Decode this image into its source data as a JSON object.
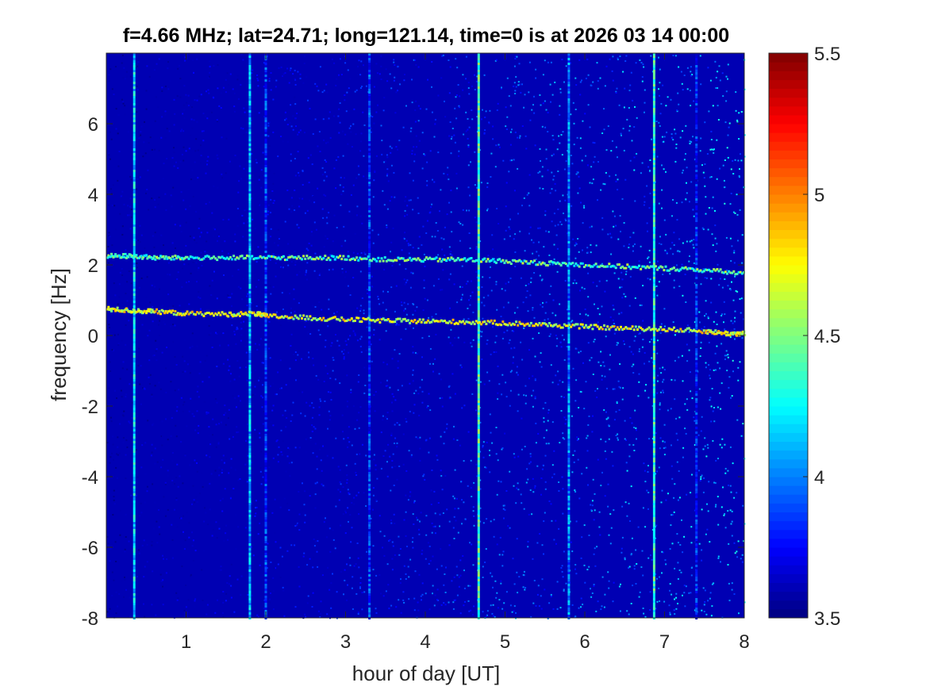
{
  "chart_data": {
    "type": "heatmap",
    "title": "f=4.66 MHz;  lat=24.71; long=121.14, time=0 is at 2026 03 14 00:00",
    "xlabel": "hour of day [UT]",
    "ylabel": "frequency [Hz]",
    "xlim": [
      0,
      8
    ],
    "ylim": [
      -8,
      8
    ],
    "x_ticks": [
      1,
      2,
      3,
      4,
      5,
      6,
      7,
      8
    ],
    "y_ticks": [
      -8,
      -6,
      -4,
      -2,
      0,
      2,
      4,
      6
    ],
    "colorbar": {
      "colormap": "jet",
      "clim": [
        3.5,
        5.5
      ],
      "ticks": [
        3.5,
        4,
        4.5,
        5,
        5.5
      ]
    },
    "background_level": 3.6,
    "noise_level_start": 3.55,
    "noise_level_end": 4.0,
    "traces": [
      {
        "x": [
          0,
          0.3,
          0.6,
          1.0,
          1.5,
          2.0,
          2.5,
          3.0,
          3.5,
          4.0,
          4.5,
          5.0,
          5.5,
          6.0,
          6.5,
          7.0,
          7.5,
          8.0
        ],
        "y": [
          2.25,
          2.25,
          2.2,
          2.2,
          2.2,
          2.2,
          2.2,
          2.2,
          2.15,
          2.15,
          2.15,
          2.1,
          2.05,
          2.0,
          1.95,
          1.9,
          1.85,
          1.75
        ],
        "level": 4.4
      },
      {
        "x": [
          0,
          0.3,
          0.6,
          1.0,
          1.5,
          1.85,
          2.0,
          2.5,
          3.0,
          3.5,
          4.0,
          4.5,
          5.0,
          5.5,
          6.0,
          6.5,
          7.0,
          7.5,
          7.8,
          8.0
        ],
        "y": [
          0.75,
          0.7,
          0.68,
          0.62,
          0.6,
          0.62,
          0.55,
          0.5,
          0.45,
          0.42,
          0.4,
          0.38,
          0.35,
          0.3,
          0.25,
          0.2,
          0.18,
          0.12,
          0.05,
          0.05
        ],
        "level": 4.7
      }
    ],
    "vertical_stripes": [
      {
        "x": 0.35,
        "level": 4.2
      },
      {
        "x": 1.8,
        "level": 4.1
      },
      {
        "x": 2.0,
        "level": 3.85
      },
      {
        "x": 3.3,
        "level": 3.85
      },
      {
        "x": 4.67,
        "level": 4.4
      },
      {
        "x": 5.8,
        "level": 4.0
      },
      {
        "x": 6.87,
        "level": 4.35
      },
      {
        "x": 7.4,
        "level": 3.8
      }
    ]
  }
}
